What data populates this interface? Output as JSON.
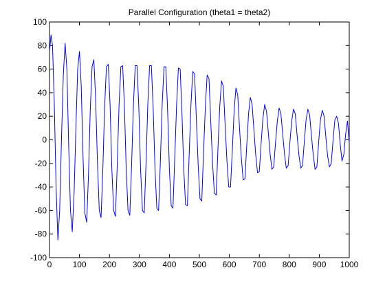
{
  "chart_data": {
    "type": "line",
    "title": "Parallel Configuration (theta1 = theta2)",
    "xlabel": "",
    "ylabel": "",
    "xlim": [
      0,
      1000
    ],
    "ylim": [
      -100,
      100
    ],
    "x_ticks": [
      0,
      100,
      200,
      300,
      400,
      500,
      600,
      700,
      800,
      900,
      1000
    ],
    "y_ticks": [
      -100,
      -80,
      -60,
      -40,
      -20,
      0,
      20,
      40,
      60,
      80,
      100
    ],
    "grid": false,
    "legend": "none",
    "series": [
      {
        "color": "#0000ff",
        "x": [
          0,
          5,
          10,
          16,
          22,
          28,
          34,
          40,
          46,
          52,
          58,
          64,
          70,
          76,
          82,
          88,
          94,
          100,
          106,
          112,
          118,
          124,
          130,
          136,
          142,
          148,
          154,
          160,
          166,
          172,
          178,
          184,
          190,
          196,
          202,
          208,
          214,
          220,
          226,
          232,
          238,
          244,
          250,
          256,
          262,
          268,
          274,
          280,
          286,
          292,
          298,
          304,
          310,
          316,
          322,
          328,
          334,
          340,
          346,
          352,
          358,
          364,
          370,
          376,
          382,
          388,
          394,
          400,
          406,
          412,
          418,
          424,
          430,
          436,
          442,
          448,
          454,
          460,
          466,
          472,
          478,
          484,
          490,
          496,
          502,
          508,
          514,
          520,
          526,
          532,
          538,
          544,
          550,
          556,
          562,
          568,
          574,
          580,
          586,
          592,
          598,
          604,
          610,
          616,
          622,
          628,
          634,
          640,
          646,
          652,
          658,
          664,
          670,
          676,
          682,
          688,
          694,
          700,
          706,
          712,
          718,
          724,
          730,
          736,
          742,
          748,
          754,
          760,
          766,
          772,
          778,
          784,
          790,
          796,
          802,
          808,
          814,
          820,
          826,
          832,
          838,
          844,
          850,
          856,
          862,
          868,
          874,
          880,
          886,
          892,
          898,
          904,
          910,
          916,
          922,
          928,
          934,
          940,
          946,
          952,
          958,
          964,
          970,
          976,
          982,
          988,
          994,
          1000
        ],
        "y": [
          75,
          89,
          80,
          30,
          -40,
          -85,
          -60,
          0,
          55,
          82,
          60,
          -5,
          -60,
          -78,
          -45,
          10,
          60,
          75,
          45,
          -15,
          -62,
          -70,
          -30,
          25,
          62,
          68,
          35,
          -20,
          -60,
          -66,
          -25,
          28,
          62,
          64,
          30,
          -25,
          -60,
          -65,
          -22,
          30,
          62,
          63,
          28,
          -25,
          -60,
          -64,
          -20,
          30,
          63,
          63,
          28,
          -25,
          -60,
          -62,
          -20,
          30,
          63,
          63,
          25,
          -25,
          -58,
          -60,
          -18,
          30,
          62,
          62,
          25,
          -25,
          -56,
          -58,
          -15,
          30,
          61,
          60,
          22,
          -25,
          -55,
          -56,
          -12,
          30,
          58,
          56,
          18,
          -22,
          -50,
          -52,
          -10,
          28,
          55,
          52,
          15,
          -20,
          -45,
          -47,
          -8,
          28,
          50,
          45,
          12,
          -18,
          -40,
          -40,
          -8,
          25,
          44,
          38,
          10,
          -15,
          -34,
          -33,
          -5,
          22,
          36,
          30,
          8,
          -13,
          -28,
          -27,
          -3,
          18,
          30,
          24,
          6,
          -12,
          -25,
          -23,
          -3,
          16,
          27,
          22,
          5,
          -12,
          -24,
          -22,
          -2,
          16,
          26,
          22,
          4,
          -13,
          -24,
          -22,
          -2,
          17,
          26,
          21,
          3,
          -13,
          -25,
          -23,
          -2,
          17,
          25,
          20,
          2,
          -14,
          -23,
          -20,
          0,
          17,
          20,
          14,
          -4,
          -18,
          -12,
          5,
          16,
          -3
        ]
      }
    ]
  }
}
